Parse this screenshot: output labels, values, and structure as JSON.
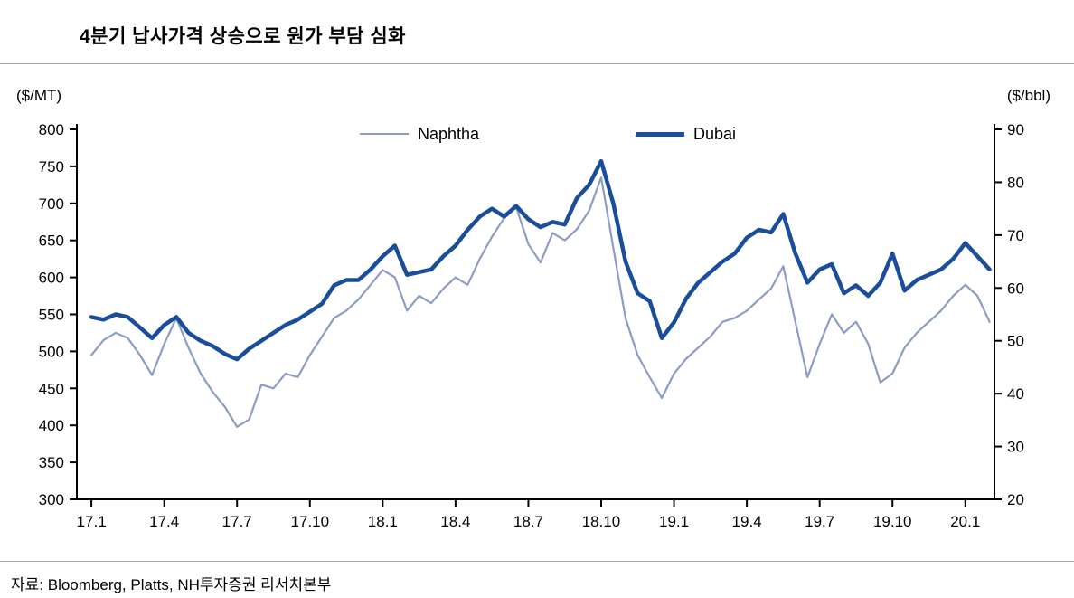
{
  "title": "4분기 납사가격 상승으로 원가 부담 심화",
  "source": "자료: Bloomberg, Platts, NH투자증권 리서치본부",
  "chart_data": {
    "type": "line",
    "title": "4분기 납사가격 상승으로 원가 부담 심화",
    "x_unit": "months since 2017-01 (0 = 17.1)",
    "x_domain": [
      -0.6,
      37.2
    ],
    "x_ticks": [
      {
        "m": 0,
        "label": "17.1"
      },
      {
        "m": 3,
        "label": "17.4"
      },
      {
        "m": 6,
        "label": "17.7"
      },
      {
        "m": 9,
        "label": "17.10"
      },
      {
        "m": 12,
        "label": "18.1"
      },
      {
        "m": 15,
        "label": "18.4"
      },
      {
        "m": 18,
        "label": "18.7"
      },
      {
        "m": 21,
        "label": "18.10"
      },
      {
        "m": 24,
        "label": "19.1"
      },
      {
        "m": 27,
        "label": "19.4"
      },
      {
        "m": 30,
        "label": "19.7"
      },
      {
        "m": 33,
        "label": "19.10"
      },
      {
        "m": 36,
        "label": "20.1"
      }
    ],
    "left_axis": {
      "label": "($/MT)",
      "min": 300,
      "max": 800,
      "tick_step": 50,
      "ticks": [
        800,
        750,
        700,
        650,
        600,
        550,
        500,
        450,
        400,
        350,
        300
      ]
    },
    "right_axis": {
      "label": "($/bbl)",
      "min": 20,
      "max": 90,
      "tick_step": 10,
      "ticks": [
        90,
        80,
        70,
        60,
        50,
        40,
        30,
        20
      ]
    },
    "grid": false,
    "legend_position": "top-inside",
    "series": [
      {
        "name": "Naphtha",
        "axis": "left",
        "unit": "$/MT",
        "color": "#8c9cc4",
        "stroke_width": 2.2,
        "x_start": 0,
        "x_step": 0.5,
        "values": [
          495,
          515,
          525,
          518,
          495,
          468,
          510,
          545,
          505,
          470,
          445,
          425,
          398,
          408,
          455,
          450,
          470,
          465,
          495,
          520,
          545,
          555,
          570,
          590,
          610,
          600,
          555,
          575,
          565,
          585,
          600,
          590,
          625,
          655,
          680,
          695,
          645,
          620,
          660,
          650,
          665,
          690,
          735,
          640,
          545,
          495,
          465,
          437,
          470,
          490,
          505,
          520,
          540,
          545,
          555,
          570,
          585,
          615,
          540,
          465,
          510,
          550,
          525,
          540,
          510,
          458,
          470,
          505,
          525,
          540,
          555,
          575,
          590,
          575,
          540
        ]
      },
      {
        "name": "Dubai",
        "axis": "right",
        "unit": "$/bbl",
        "color": "#1a4e9b",
        "stroke_width": 4.5,
        "x_start": 0,
        "x_step": 0.5,
        "values": [
          54.5,
          54,
          55,
          54.5,
          52.5,
          50.5,
          53,
          54.5,
          51.5,
          50,
          49,
          47.5,
          46.5,
          48.5,
          50,
          51.5,
          53,
          54,
          55.5,
          57,
          60.5,
          61.5,
          61.5,
          63.5,
          66,
          68,
          62.5,
          63,
          63.5,
          66,
          68,
          71,
          73.5,
          75,
          73.5,
          75.5,
          73,
          71.5,
          72.5,
          72,
          77,
          79.5,
          84,
          76,
          65,
          59,
          57.5,
          50.5,
          53.5,
          58,
          61,
          63,
          65,
          66.5,
          69.5,
          71,
          70.5,
          74,
          66.5,
          61,
          63.5,
          64.5,
          59,
          60.5,
          58.5,
          61,
          66.5,
          59.5,
          61.5,
          62.5,
          63.5,
          65.5,
          68.5,
          66,
          63.5
        ]
      }
    ]
  }
}
